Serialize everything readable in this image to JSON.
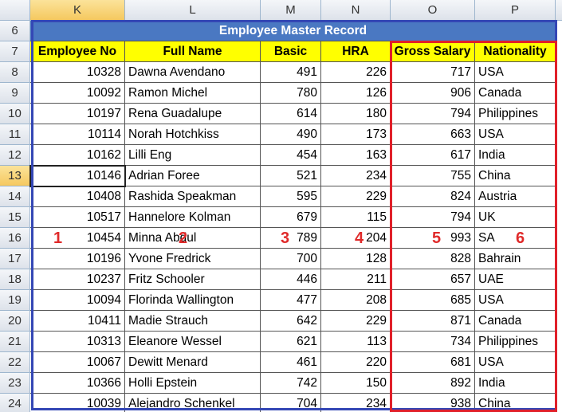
{
  "column_headers": [
    "K",
    "L",
    "M",
    "N",
    "O",
    "P"
  ],
  "row_headers": [
    6,
    7,
    8,
    9,
    10,
    11,
    12,
    13,
    14,
    15,
    16,
    17,
    18,
    19,
    20,
    21,
    22,
    23,
    24
  ],
  "title": "Employee Master Record",
  "headers": [
    "Employee No",
    "Full Name",
    "Basic",
    "HRA",
    "Gross Salary",
    "Nationality"
  ],
  "rows": [
    [
      10328,
      "Dawna Avendano",
      491,
      226,
      717,
      "USA"
    ],
    [
      10092,
      "Ramon Michel",
      780,
      126,
      906,
      "Canada"
    ],
    [
      10197,
      "Rena Guadalupe",
      614,
      180,
      794,
      "Philippines"
    ],
    [
      10114,
      "Norah Hotchkiss",
      490,
      173,
      663,
      "USA"
    ],
    [
      10162,
      "Lilli Eng",
      454,
      163,
      617,
      "India"
    ],
    [
      10146,
      "Adrian Foree",
      521,
      234,
      755,
      "China"
    ],
    [
      10408,
      "Rashida Speakman",
      595,
      229,
      824,
      "Austria"
    ],
    [
      10517,
      "Hannelore Kolman",
      679,
      115,
      794,
      "UK"
    ],
    [
      10454,
      "Minna Abdul",
      789,
      204,
      993,
      "SA"
    ],
    [
      10196,
      "Yvone Fredrick",
      700,
      128,
      828,
      "Bahrain"
    ],
    [
      10237,
      "Fritz Schooler",
      446,
      211,
      657,
      "UAE"
    ],
    [
      10094,
      "Florinda Wallington",
      477,
      208,
      685,
      "USA"
    ],
    [
      10411,
      "Madie Strauch",
      642,
      229,
      871,
      "Canada"
    ],
    [
      10313,
      "Eleanore Wessel",
      621,
      113,
      734,
      "Philippines"
    ],
    [
      10067,
      "Dewitt Menard",
      461,
      220,
      681,
      "USA"
    ],
    [
      10366,
      "Holli Epstein",
      742,
      150,
      892,
      "India"
    ],
    [
      10039,
      "Alejandro Schenkel",
      704,
      234,
      938,
      "China"
    ]
  ],
  "annotations": [
    "1",
    "2",
    "3",
    "4",
    "5",
    "6"
  ]
}
